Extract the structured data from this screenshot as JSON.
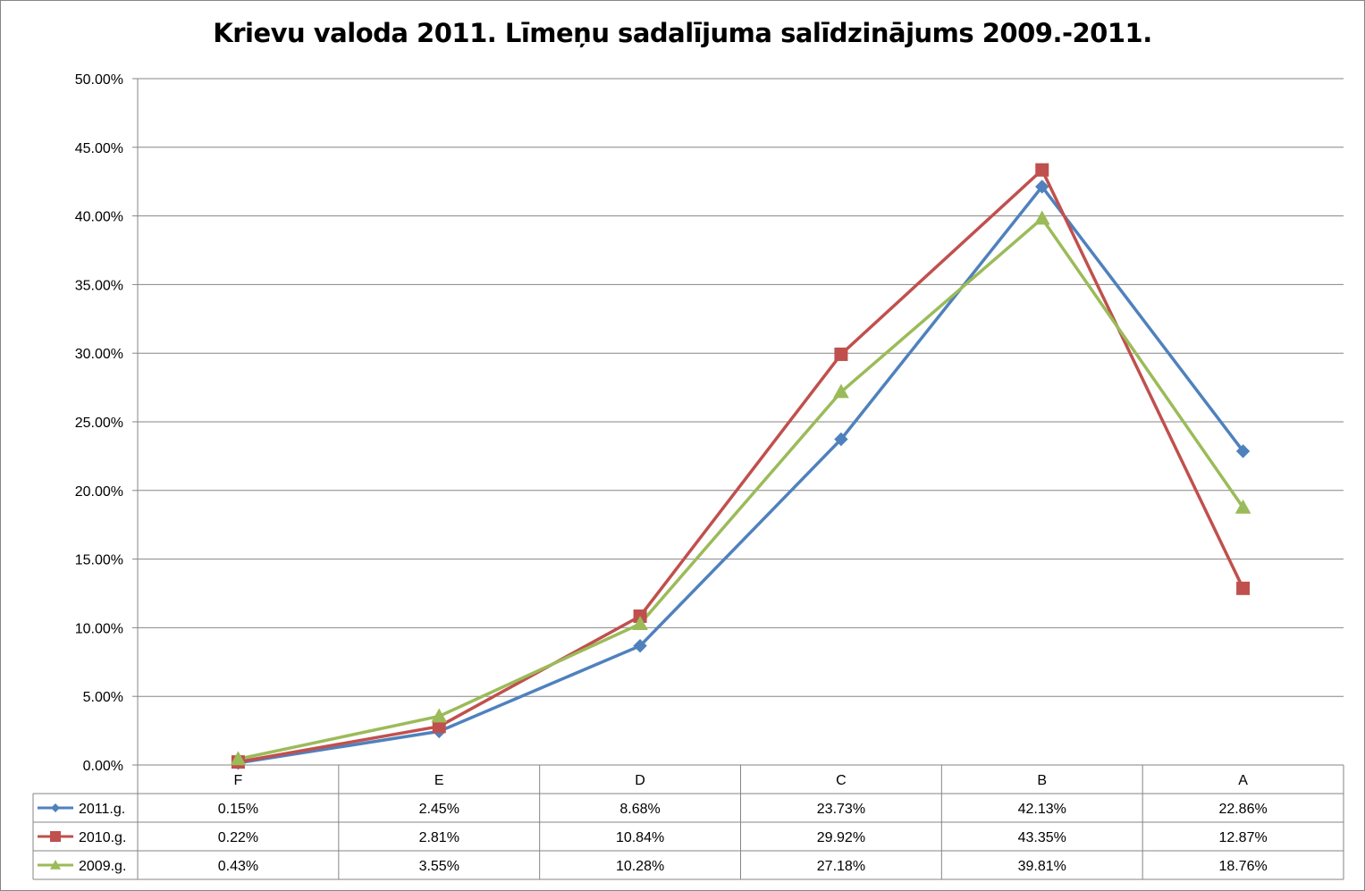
{
  "chart_data": {
    "type": "line",
    "title": "Krievu valoda 2011. Līmeņu sadalījuma salīdzinājums 2009.-2011.",
    "categories": [
      "F",
      "E",
      "D",
      "C",
      "B",
      "A"
    ],
    "ylim": [
      0,
      50
    ],
    "yticks": [
      0,
      5,
      10,
      15,
      20,
      25,
      30,
      35,
      40,
      45,
      50
    ],
    "ytick_labels": [
      "0.00%",
      "5.00%",
      "10.00%",
      "15.00%",
      "20.00%",
      "25.00%",
      "30.00%",
      "35.00%",
      "40.00%",
      "45.00%",
      "50.00%"
    ],
    "grid": true,
    "legend": "data-table",
    "series": [
      {
        "name": "2011.g.",
        "color": "#4F81BD",
        "marker": "diamond",
        "values": [
          0.15,
          2.45,
          8.68,
          23.73,
          42.13,
          22.86
        ],
        "labels": [
          "0.15%",
          "2.45%",
          "8.68%",
          "23.73%",
          "42.13%",
          "22.86%"
        ]
      },
      {
        "name": "2010.g.",
        "color": "#C0504D",
        "marker": "square",
        "values": [
          0.22,
          2.81,
          10.84,
          29.92,
          43.35,
          12.87
        ],
        "labels": [
          "0.22%",
          "2.81%",
          "10.84%",
          "29.92%",
          "43.35%",
          "12.87%"
        ]
      },
      {
        "name": "2009.g.",
        "color": "#9BBB59",
        "marker": "triangle",
        "values": [
          0.43,
          3.55,
          10.28,
          27.18,
          39.81,
          18.76
        ],
        "labels": [
          "0.43%",
          "3.55%",
          "10.28%",
          "27.18%",
          "39.81%",
          "18.76%"
        ]
      }
    ]
  }
}
